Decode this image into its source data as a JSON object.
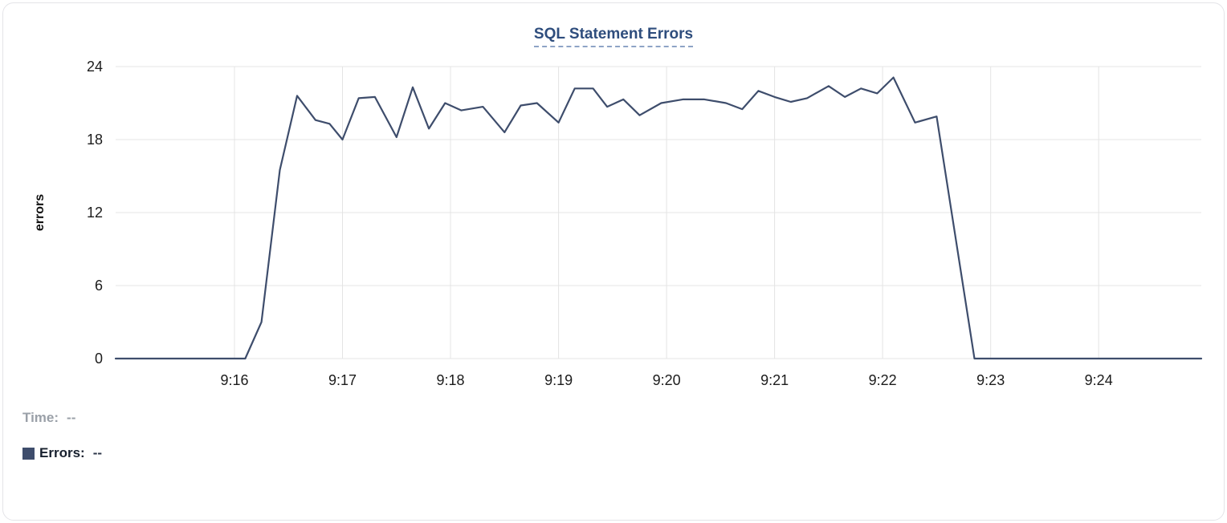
{
  "chart_data": {
    "type": "line",
    "title": "SQL Statement Errors",
    "xlabel": "",
    "ylabel": "errors",
    "x_unit": "minutes after 9:00 (decimal)",
    "xlim": [
      14.9,
      24.95
    ],
    "ylim": [
      0,
      24
    ],
    "grid": true,
    "legend_position": "bottom-left",
    "y_ticks": [
      0,
      6,
      12,
      18,
      24
    ],
    "x_ticks": [
      {
        "v": 16,
        "label": "9:16"
      },
      {
        "v": 17,
        "label": "9:17"
      },
      {
        "v": 18,
        "label": "9:18"
      },
      {
        "v": 19,
        "label": "9:19"
      },
      {
        "v": 20,
        "label": "9:20"
      },
      {
        "v": 21,
        "label": "9:21"
      },
      {
        "v": 22,
        "label": "9:22"
      },
      {
        "v": 23,
        "label": "9:23"
      },
      {
        "v": 24,
        "label": "9:24"
      }
    ],
    "colors": {
      "line": "#3e4d6c",
      "grid": "#e4e4e4",
      "tick": "#1c1c1c",
      "title": "#2e4d7d"
    },
    "series": [
      {
        "name": "Errors",
        "points": [
          [
            14.9,
            0
          ],
          [
            15.3,
            0
          ],
          [
            15.7,
            0
          ],
          [
            16.1,
            0
          ],
          [
            16.25,
            3
          ],
          [
            16.42,
            15.5
          ],
          [
            16.58,
            21.6
          ],
          [
            16.75,
            19.6
          ],
          [
            16.88,
            19.3
          ],
          [
            17.0,
            18.0
          ],
          [
            17.15,
            21.4
          ],
          [
            17.3,
            21.5
          ],
          [
            17.5,
            18.2
          ],
          [
            17.65,
            22.3
          ],
          [
            17.8,
            18.9
          ],
          [
            17.95,
            21.0
          ],
          [
            18.1,
            20.4
          ],
          [
            18.3,
            20.7
          ],
          [
            18.5,
            18.6
          ],
          [
            18.65,
            20.8
          ],
          [
            18.8,
            21.0
          ],
          [
            19.0,
            19.4
          ],
          [
            19.15,
            22.2
          ],
          [
            19.32,
            22.2
          ],
          [
            19.45,
            20.7
          ],
          [
            19.6,
            21.3
          ],
          [
            19.75,
            20.0
          ],
          [
            19.95,
            21.0
          ],
          [
            20.15,
            21.3
          ],
          [
            20.35,
            21.3
          ],
          [
            20.55,
            21.0
          ],
          [
            20.7,
            20.5
          ],
          [
            20.85,
            22.0
          ],
          [
            21.0,
            21.5
          ],
          [
            21.15,
            21.1
          ],
          [
            21.3,
            21.4
          ],
          [
            21.5,
            22.4
          ],
          [
            21.65,
            21.5
          ],
          [
            21.8,
            22.2
          ],
          [
            21.95,
            21.8
          ],
          [
            22.1,
            23.1
          ],
          [
            22.3,
            19.4
          ],
          [
            22.5,
            19.9
          ],
          [
            22.85,
            0
          ],
          [
            23.2,
            0
          ],
          [
            23.6,
            0
          ],
          [
            24.0,
            0
          ],
          [
            24.5,
            0
          ],
          [
            24.95,
            0
          ]
        ]
      }
    ]
  },
  "legend": {
    "time_label": "Time:",
    "time_value": "--",
    "errors_label": "Errors:",
    "errors_value": "--",
    "swatch_color": "#3e4d6c"
  }
}
